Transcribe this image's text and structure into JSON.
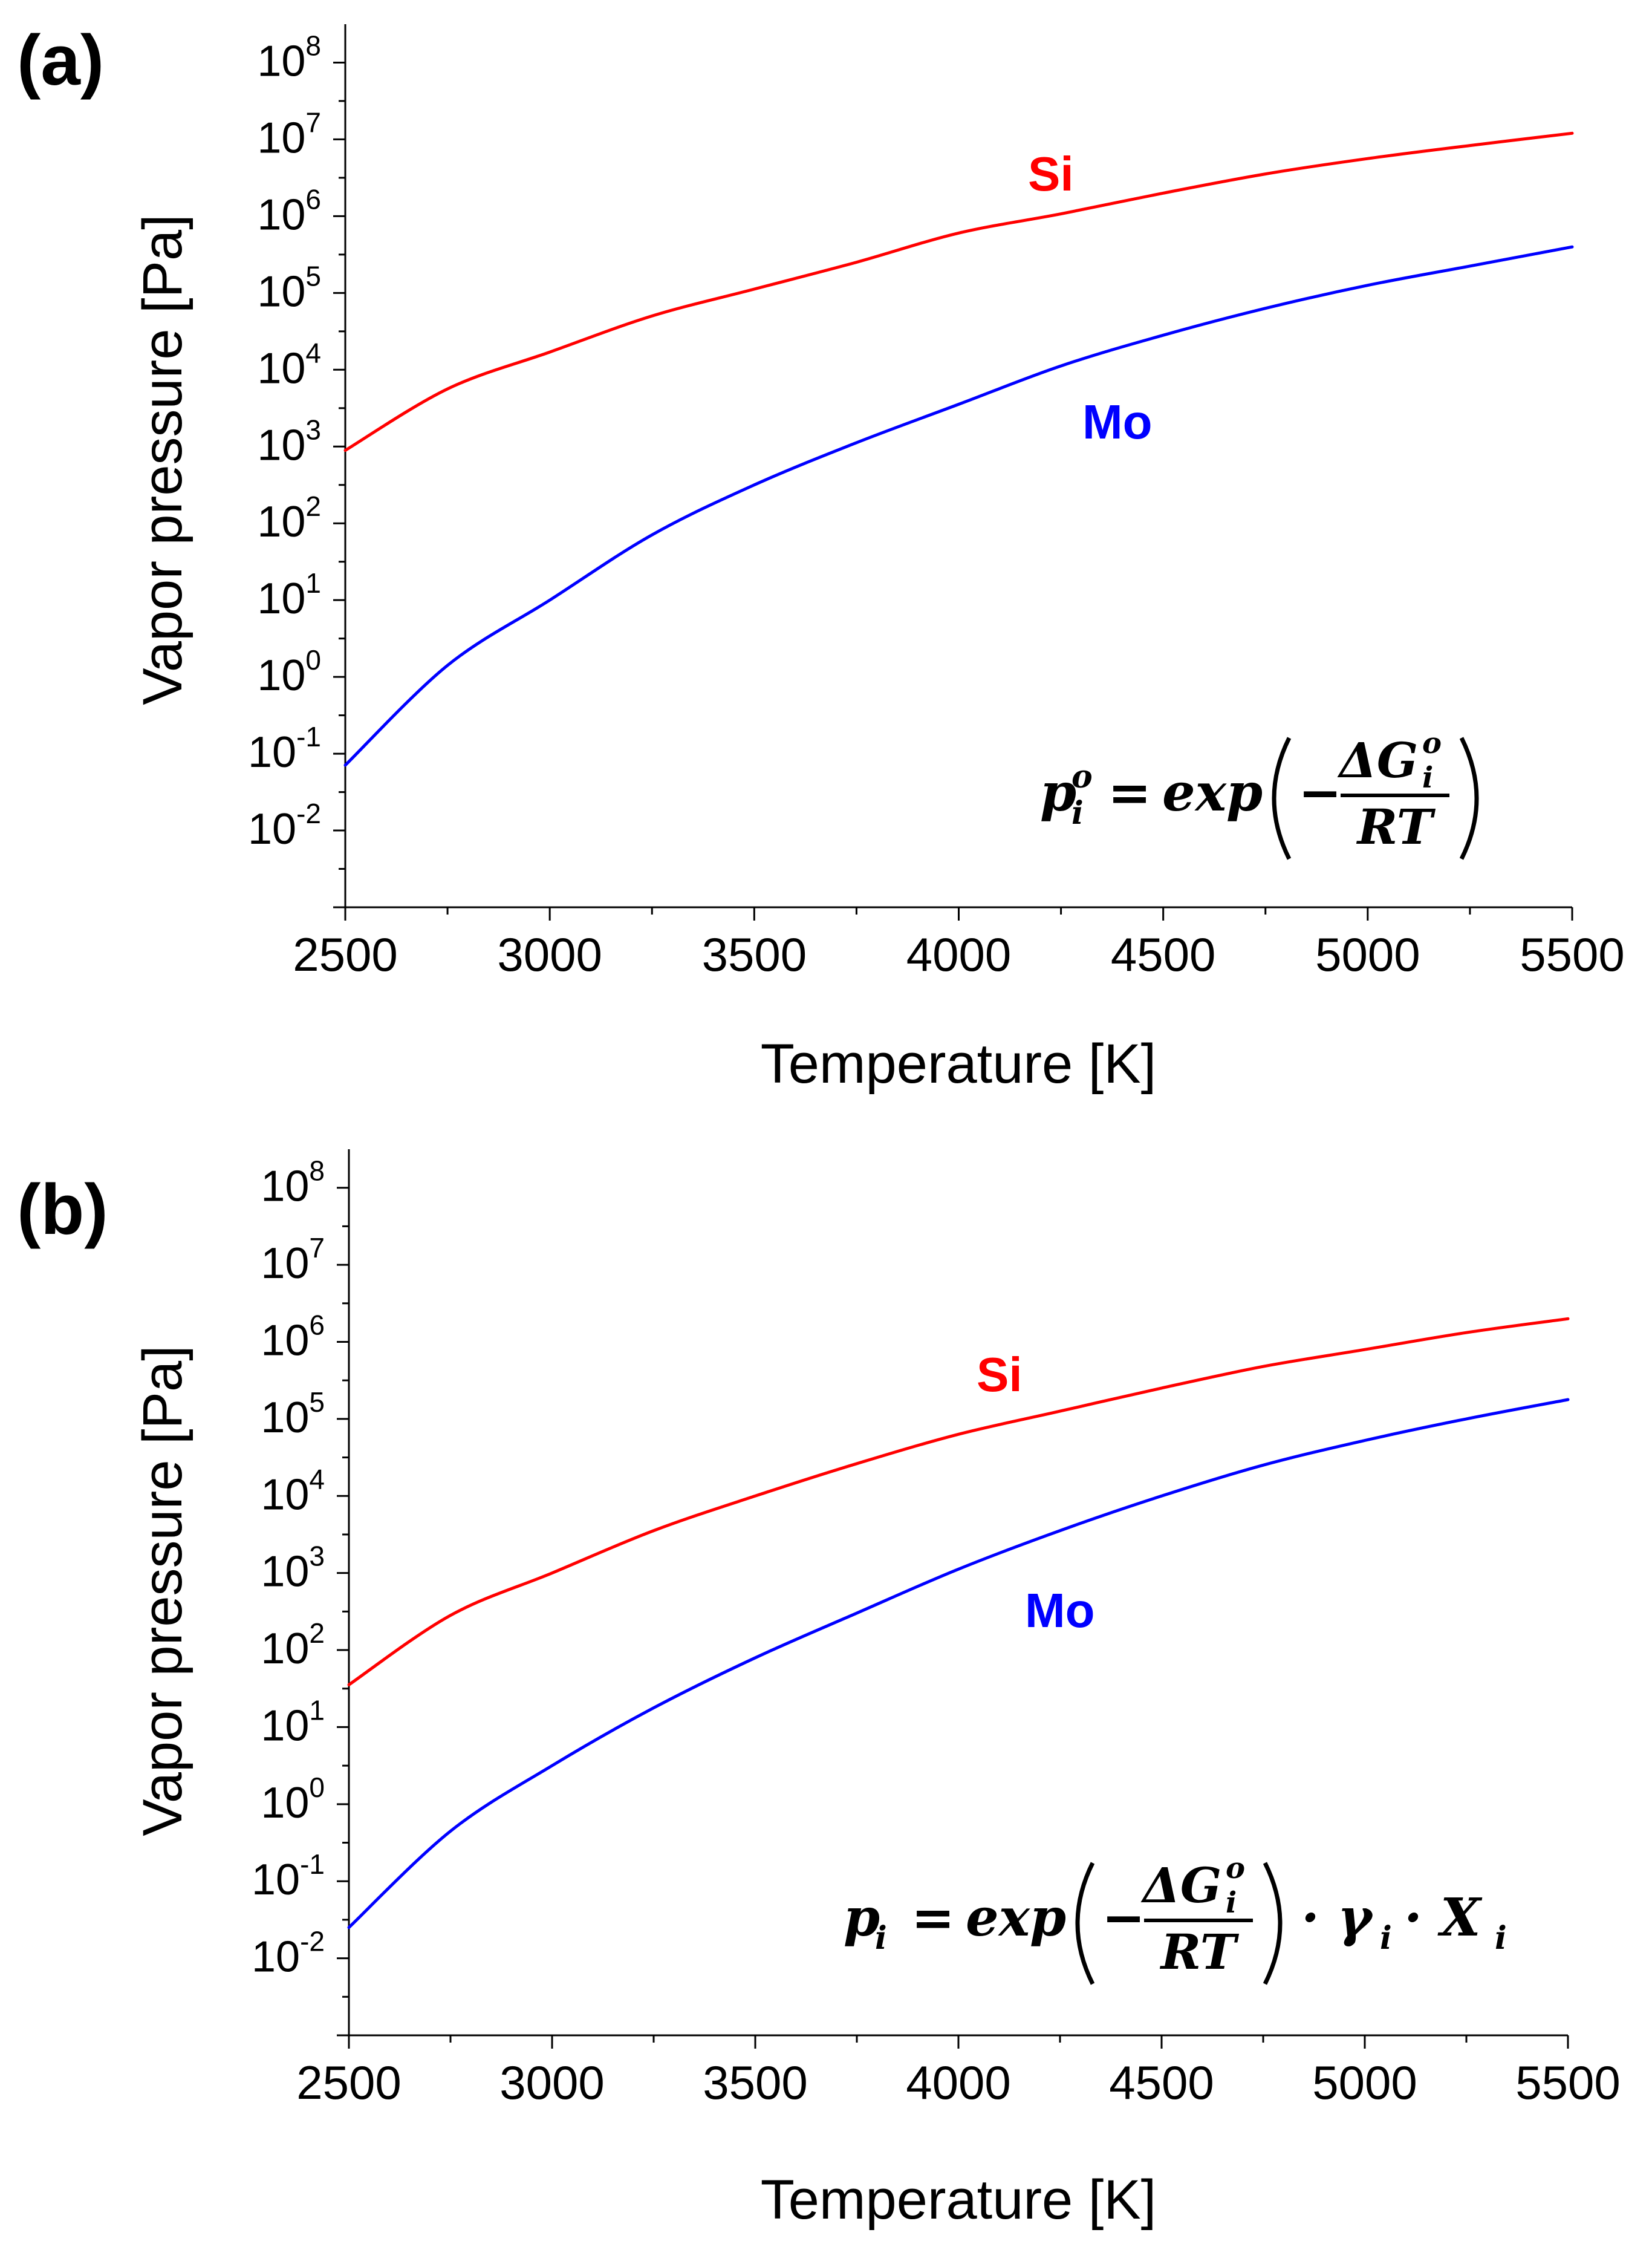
{
  "colors": {
    "si": "#ff0000",
    "mo": "#0000ff",
    "axis": "#000000"
  },
  "chart_data": [
    {
      "type": "line",
      "panel_label": "(a)",
      "xlabel": "Temperature [K]",
      "ylabel": "Vapor pressure [Pa]",
      "xlim": [
        2500,
        5500
      ],
      "ylim_log10": [
        -3,
        8.5
      ],
      "yscale": "log",
      "x_ticks": [
        2500,
        3000,
        3500,
        4000,
        4500,
        5000,
        5500
      ],
      "x_tick_labels": [
        "2500",
        "3000",
        "3500",
        "4000",
        "4500",
        "5000",
        "5500"
      ],
      "y_tick_exponents": [
        -2,
        -1,
        0,
        1,
        2,
        3,
        4,
        5,
        6,
        7,
        8
      ],
      "y_tick_base": "10",
      "y_tick_exponent_labels": [
        "-2",
        "-1",
        "0",
        "1",
        "2",
        "3",
        "4",
        "5",
        "6",
        "7",
        "8"
      ],
      "grid": false,
      "equation": {
        "lhs": "p",
        "lhs_sup": "o",
        "lhs_sub": "i",
        "eq": "=",
        "fn": "exp",
        "minus": "−",
        "num": "ΔG",
        "num_sup": "o",
        "num_sub": "i",
        "den": "RT",
        "tail": ""
      },
      "series": [
        {
          "name": "Si",
          "label": "Si",
          "color_key": "si",
          "x": [
            2500,
            2750,
            3000,
            3250,
            3500,
            3750,
            4000,
            4250,
            4500,
            4750,
            5000,
            5250,
            5500
          ],
          "log10_y": [
            2.95,
            3.75,
            4.23,
            4.7,
            5.05,
            5.4,
            5.78,
            6.03,
            6.3,
            6.55,
            6.75,
            6.92,
            7.08
          ]
        },
        {
          "name": "Mo",
          "label": "Mo",
          "color_key": "mo",
          "x": [
            2500,
            2750,
            3000,
            3250,
            3500,
            3750,
            4000,
            4250,
            4500,
            4750,
            5000,
            5250,
            5500
          ],
          "log10_y": [
            -1.15,
            0.15,
            1.0,
            1.85,
            2.5,
            3.05,
            3.55,
            4.05,
            4.45,
            4.8,
            5.1,
            5.35,
            5.6
          ]
        }
      ]
    },
    {
      "type": "line",
      "panel_label": "(b)",
      "xlabel": "Temperature [K]",
      "ylabel": "Vapor pressure [Pa]",
      "xlim": [
        2500,
        5500
      ],
      "ylim_log10": [
        -3,
        8.5
      ],
      "yscale": "log",
      "x_ticks": [
        2500,
        3000,
        3500,
        4000,
        4500,
        5000,
        5500
      ],
      "x_tick_labels": [
        "2500",
        "3000",
        "3500",
        "4000",
        "4500",
        "5000",
        "5500"
      ],
      "y_tick_exponents": [
        -2,
        -1,
        0,
        1,
        2,
        3,
        4,
        5,
        6,
        7,
        8
      ],
      "y_tick_base": "10",
      "y_tick_exponent_labels": [
        "-2",
        "-1",
        "0",
        "1",
        "2",
        "3",
        "4",
        "5",
        "6",
        "7",
        "8"
      ],
      "grid": false,
      "equation": {
        "lhs": "p",
        "lhs_sup": "",
        "lhs_sub": "i",
        "eq": "=",
        "fn": "exp",
        "minus": "−",
        "num": "ΔG",
        "num_sup": "o",
        "num_sub": "i",
        "den": "RT",
        "tail": "· γ",
        "tail_sub1": "i",
        "tail2": "· X",
        "tail_sub2": "i"
      },
      "series": [
        {
          "name": "Si",
          "label": "Si",
          "color_key": "si",
          "x": [
            2500,
            2750,
            3000,
            3250,
            3500,
            3750,
            4000,
            4250,
            4500,
            4750,
            5000,
            5250,
            5500
          ],
          "log10_y": [
            1.55,
            2.45,
            3.0,
            3.55,
            4.0,
            4.42,
            4.8,
            5.1,
            5.4,
            5.68,
            5.9,
            6.12,
            6.3
          ]
        },
        {
          "name": "Mo",
          "label": "Mo",
          "color_key": "mo",
          "x": [
            2500,
            2750,
            3000,
            3250,
            3500,
            3750,
            4000,
            4250,
            4500,
            4750,
            5000,
            5250,
            5500
          ],
          "log10_y": [
            -1.6,
            -0.35,
            0.5,
            1.25,
            1.9,
            2.48,
            3.05,
            3.55,
            4.0,
            4.4,
            4.72,
            5.0,
            5.25
          ]
        }
      ]
    }
  ]
}
